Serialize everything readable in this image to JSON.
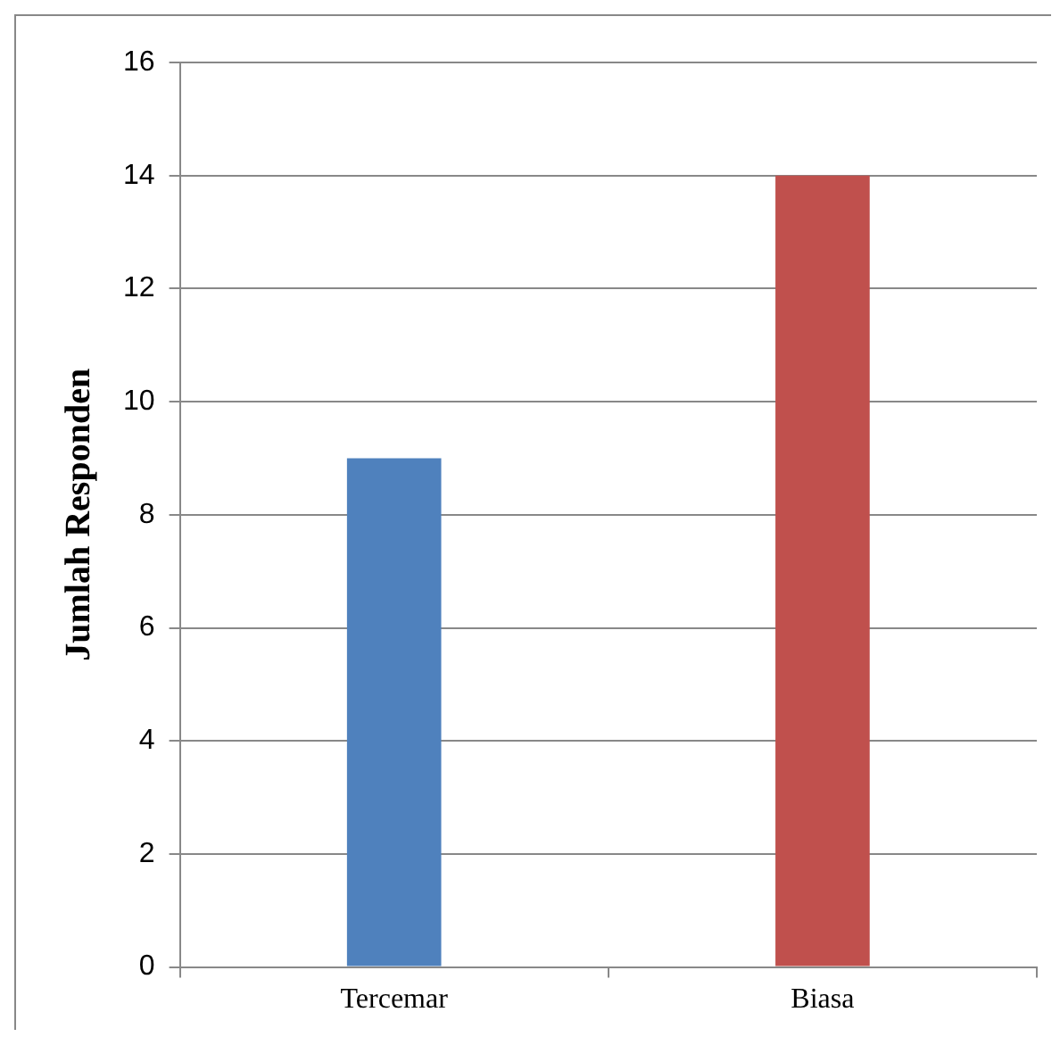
{
  "chart_data": {
    "type": "bar",
    "ylabel": "Jumlah Responden",
    "categories": [
      "Tercemar",
      "Biasa"
    ],
    "values": [
      9,
      14
    ],
    "colors": [
      "#4f81bd",
      "#c0504d"
    ],
    "ylim": [
      0,
      16
    ],
    "yticks": [
      0,
      2,
      4,
      6,
      8,
      10,
      12,
      14,
      16
    ],
    "grid": "y",
    "legend": false
  }
}
